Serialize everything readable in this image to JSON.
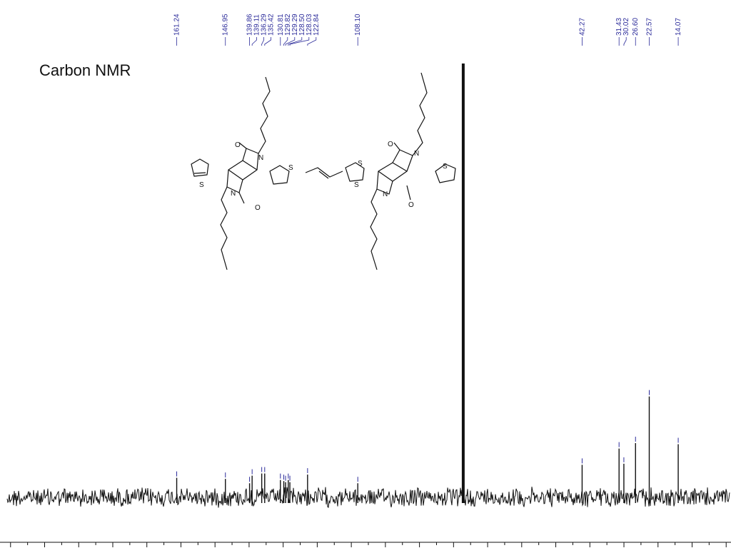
{
  "chart_data": {
    "type": "line",
    "title": "Carbon NMR",
    "xlabel": "",
    "ylabel": "",
    "xlim": [
      211,
      -1
    ],
    "x_reversed": true,
    "peak_labels": [
      "161.24",
      "146.95",
      "139.86",
      "139.11",
      "136.29",
      "135.42",
      "130.81",
      "129.82",
      "129.29",
      "128.50",
      "128.03",
      "122.84",
      "108.10",
      "42.27",
      "31.43",
      "30.02",
      "26.60",
      "22.57",
      "14.07"
    ],
    "peaks": [
      {
        "ppm": 161.24,
        "intensity": 0.18
      },
      {
        "ppm": 146.95,
        "intensity": 0.17
      },
      {
        "ppm": 139.86,
        "intensity": 0.13
      },
      {
        "ppm": 139.11,
        "intensity": 0.2
      },
      {
        "ppm": 136.29,
        "intensity": 0.22
      },
      {
        "ppm": 135.42,
        "intensity": 0.22
      },
      {
        "ppm": 130.81,
        "intensity": 0.16
      },
      {
        "ppm": 129.82,
        "intensity": 0.15
      },
      {
        "ppm": 129.29,
        "intensity": 0.14
      },
      {
        "ppm": 128.5,
        "intensity": 0.16
      },
      {
        "ppm": 128.03,
        "intensity": 0.14
      },
      {
        "ppm": 122.84,
        "intensity": 0.21
      },
      {
        "ppm": 108.1,
        "intensity": 0.13
      },
      {
        "ppm": 77.16,
        "intensity": 4.0,
        "solvent": true
      },
      {
        "ppm": 42.27,
        "intensity": 0.3
      },
      {
        "ppm": 31.43,
        "intensity": 0.45
      },
      {
        "ppm": 30.02,
        "intensity": 0.31
      },
      {
        "ppm": 26.6,
        "intensity": 0.5
      },
      {
        "ppm": 22.57,
        "intensity": 0.93
      },
      {
        "ppm": 14.07,
        "intensity": 0.49
      }
    ]
  },
  "molecule_atoms": [
    "S",
    "O",
    "N",
    "O",
    "N",
    "S",
    "S",
    "S",
    "O",
    "N",
    "O",
    "N",
    "S"
  ]
}
